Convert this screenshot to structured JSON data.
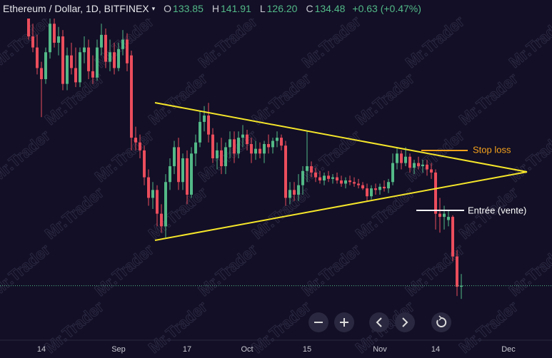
{
  "chart_data": {
    "type": "candlestick",
    "title": "Ethereum / Dollar, 1D, BITFINEX",
    "legend": [
      {
        "label": "O",
        "value": "133.85"
      },
      {
        "label": "H",
        "value": "141.91"
      },
      {
        "label": "L",
        "value": "126.20"
      },
      {
        "label": "C",
        "value": "134.48"
      }
    ],
    "change": "+0.63 (+0.47%)",
    "watermark": "Mr.Trader",
    "up_color": "#53b987",
    "down_color": "#eb4d5c",
    "ylim": [
      101,
      315
    ],
    "annotations": [
      {
        "text": "Stop loss",
        "color": "#f7a21b"
      },
      {
        "text": "Entrée (vente)",
        "color": "#ffffff"
      }
    ],
    "categories": [
      null,
      null,
      null,
      "14",
      null,
      null,
      null,
      null,
      null,
      null,
      null,
      null,
      null,
      null,
      null,
      null,
      null,
      null,
      null,
      null,
      null,
      "Sep",
      null,
      null,
      null,
      null,
      null,
      null,
      null,
      null,
      null,
      null,
      null,
      null,
      null,
      null,
      null,
      "17",
      null,
      null,
      null,
      null,
      null,
      null,
      null,
      null,
      null,
      null,
      null,
      null,
      null,
      "Oct",
      null,
      null,
      null,
      null,
      null,
      null,
      null,
      null,
      null,
      null,
      null,
      null,
      null,
      "15",
      null,
      null,
      null,
      null,
      null,
      null,
      null,
      null,
      null,
      null,
      null,
      null,
      null,
      null,
      null,
      null,
      "Nov",
      null,
      null,
      null,
      null,
      null,
      null,
      null,
      null,
      null,
      null,
      null,
      null,
      "14",
      null,
      null,
      null,
      null,
      null,
      null,
      null,
      null,
      null,
      null,
      null,
      null,
      null,
      null,
      null,
      null,
      "Dec",
      null,
      null,
      null,
      null,
      null,
      null,
      null,
      null,
      null,
      null
    ],
    "candles": [
      [
        305,
        312,
        290,
        292
      ],
      [
        292,
        300,
        282,
        285
      ],
      [
        285,
        293,
        268,
        272
      ],
      [
        272,
        276,
        241,
        265
      ],
      [
        265,
        285,
        262,
        282
      ],
      [
        282,
        310,
        278,
        300
      ],
      [
        300,
        305,
        285,
        288
      ],
      [
        288,
        298,
        280,
        292
      ],
      [
        292,
        296,
        258,
        262
      ],
      [
        262,
        285,
        258,
        280
      ],
      [
        280,
        288,
        268,
        272
      ],
      [
        272,
        285,
        260,
        263
      ],
      [
        263,
        285,
        260,
        282
      ],
      [
        282,
        292,
        275,
        285
      ],
      [
        285,
        290,
        265,
        270
      ],
      [
        270,
        280,
        262,
        266
      ],
      [
        266,
        290,
        264,
        285
      ],
      [
        285,
        300,
        280,
        293
      ],
      [
        293,
        297,
        272,
        276
      ],
      [
        276,
        290,
        270,
        282
      ],
      [
        282,
        288,
        268,
        272
      ],
      [
        272,
        288,
        270,
        284
      ],
      [
        284,
        296,
        280,
        290
      ],
      [
        290,
        294,
        270,
        275
      ],
      [
        280,
        283,
        220,
        228
      ],
      [
        228,
        235,
        220,
        225
      ],
      [
        225,
        230,
        215,
        220
      ],
      [
        220,
        223,
        198,
        203
      ],
      [
        203,
        208,
        185,
        190
      ],
      [
        190,
        200,
        183,
        195
      ],
      [
        195,
        198,
        172,
        180
      ],
      [
        180,
        186,
        168,
        172
      ],
      [
        172,
        205,
        165,
        200
      ],
      [
        200,
        215,
        195,
        210
      ],
      [
        210,
        226,
        205,
        222
      ],
      [
        222,
        228,
        195,
        200
      ],
      [
        200,
        218,
        195,
        215
      ],
      [
        215,
        220,
        186,
        192
      ],
      [
        192,
        222,
        190,
        218
      ],
      [
        218,
        230,
        210,
        225
      ],
      [
        225,
        245,
        222,
        238
      ],
      [
        238,
        248,
        232,
        242
      ],
      [
        242,
        250,
        225,
        230
      ],
      [
        230,
        234,
        212,
        215
      ],
      [
        215,
        225,
        208,
        220
      ],
      [
        220,
        228,
        205,
        210
      ],
      [
        210,
        225,
        205,
        222
      ],
      [
        222,
        232,
        215,
        227
      ],
      [
        227,
        232,
        212,
        218
      ],
      [
        218,
        232,
        215,
        228
      ],
      [
        228,
        236,
        222,
        230
      ],
      [
        230,
        233,
        220,
        224
      ],
      [
        224,
        228,
        212,
        218
      ],
      [
        218,
        226,
        214,
        221
      ],
      [
        221,
        225,
        215,
        218
      ],
      [
        218,
        226,
        212,
        224
      ],
      [
        224,
        230,
        218,
        222
      ],
      [
        222,
        228,
        218,
        226
      ],
      [
        226,
        232,
        222,
        228
      ],
      [
        228,
        230,
        220,
        223
      ],
      [
        223,
        226,
        185,
        190
      ],
      [
        190,
        200,
        186,
        195
      ],
      [
        195,
        200,
        188,
        192
      ],
      [
        192,
        205,
        188,
        198
      ],
      [
        198,
        210,
        192,
        207
      ],
      [
        207,
        232,
        200,
        210
      ],
      [
        210,
        213,
        203,
        206
      ],
      [
        206,
        209,
        200,
        203
      ],
      [
        203,
        207,
        199,
        201
      ],
      [
        201,
        206,
        198,
        204
      ],
      [
        204,
        207,
        200,
        202
      ],
      [
        202,
        205,
        199,
        203
      ],
      [
        203,
        206,
        199,
        201
      ],
      [
        201,
        204,
        197,
        199
      ],
      [
        199,
        203,
        196,
        201
      ],
      [
        201,
        204,
        198,
        200
      ],
      [
        200,
        203,
        197,
        199
      ],
      [
        199,
        202,
        196,
        198
      ],
      [
        198,
        200,
        195,
        196
      ],
      [
        196,
        199,
        188,
        191
      ],
      [
        191,
        198,
        189,
        196
      ],
      [
        196,
        199,
        192,
        195
      ],
      [
        195,
        199,
        192,
        197
      ],
      [
        197,
        201,
        194,
        196
      ],
      [
        196,
        202,
        193,
        200
      ],
      [
        200,
        218,
        198,
        212
      ],
      [
        212,
        222,
        208,
        218
      ],
      [
        218,
        220,
        208,
        212
      ],
      [
        212,
        222,
        210,
        216
      ],
      [
        216,
        218,
        206,
        209
      ],
      [
        209,
        214,
        205,
        212
      ],
      [
        212,
        216,
        208,
        210
      ],
      [
        210,
        214,
        206,
        211
      ],
      [
        211,
        214,
        204,
        208
      ],
      [
        208,
        212,
        202,
        206
      ],
      [
        206,
        208,
        170,
        180
      ],
      [
        180,
        190,
        168,
        178
      ],
      [
        178,
        185,
        170,
        180
      ],
      [
        176,
        182,
        172,
        178
      ],
      [
        178,
        179,
        150,
        153
      ],
      [
        153,
        157,
        128,
        133.85
      ],
      [
        133.85,
        141.91,
        126.2,
        134.48
      ],
      null,
      null,
      null,
      null,
      null,
      null,
      null,
      null,
      null,
      null,
      null,
      null,
      null,
      null,
      null,
      null,
      null,
      null,
      null,
      null,
      null
    ]
  }
}
